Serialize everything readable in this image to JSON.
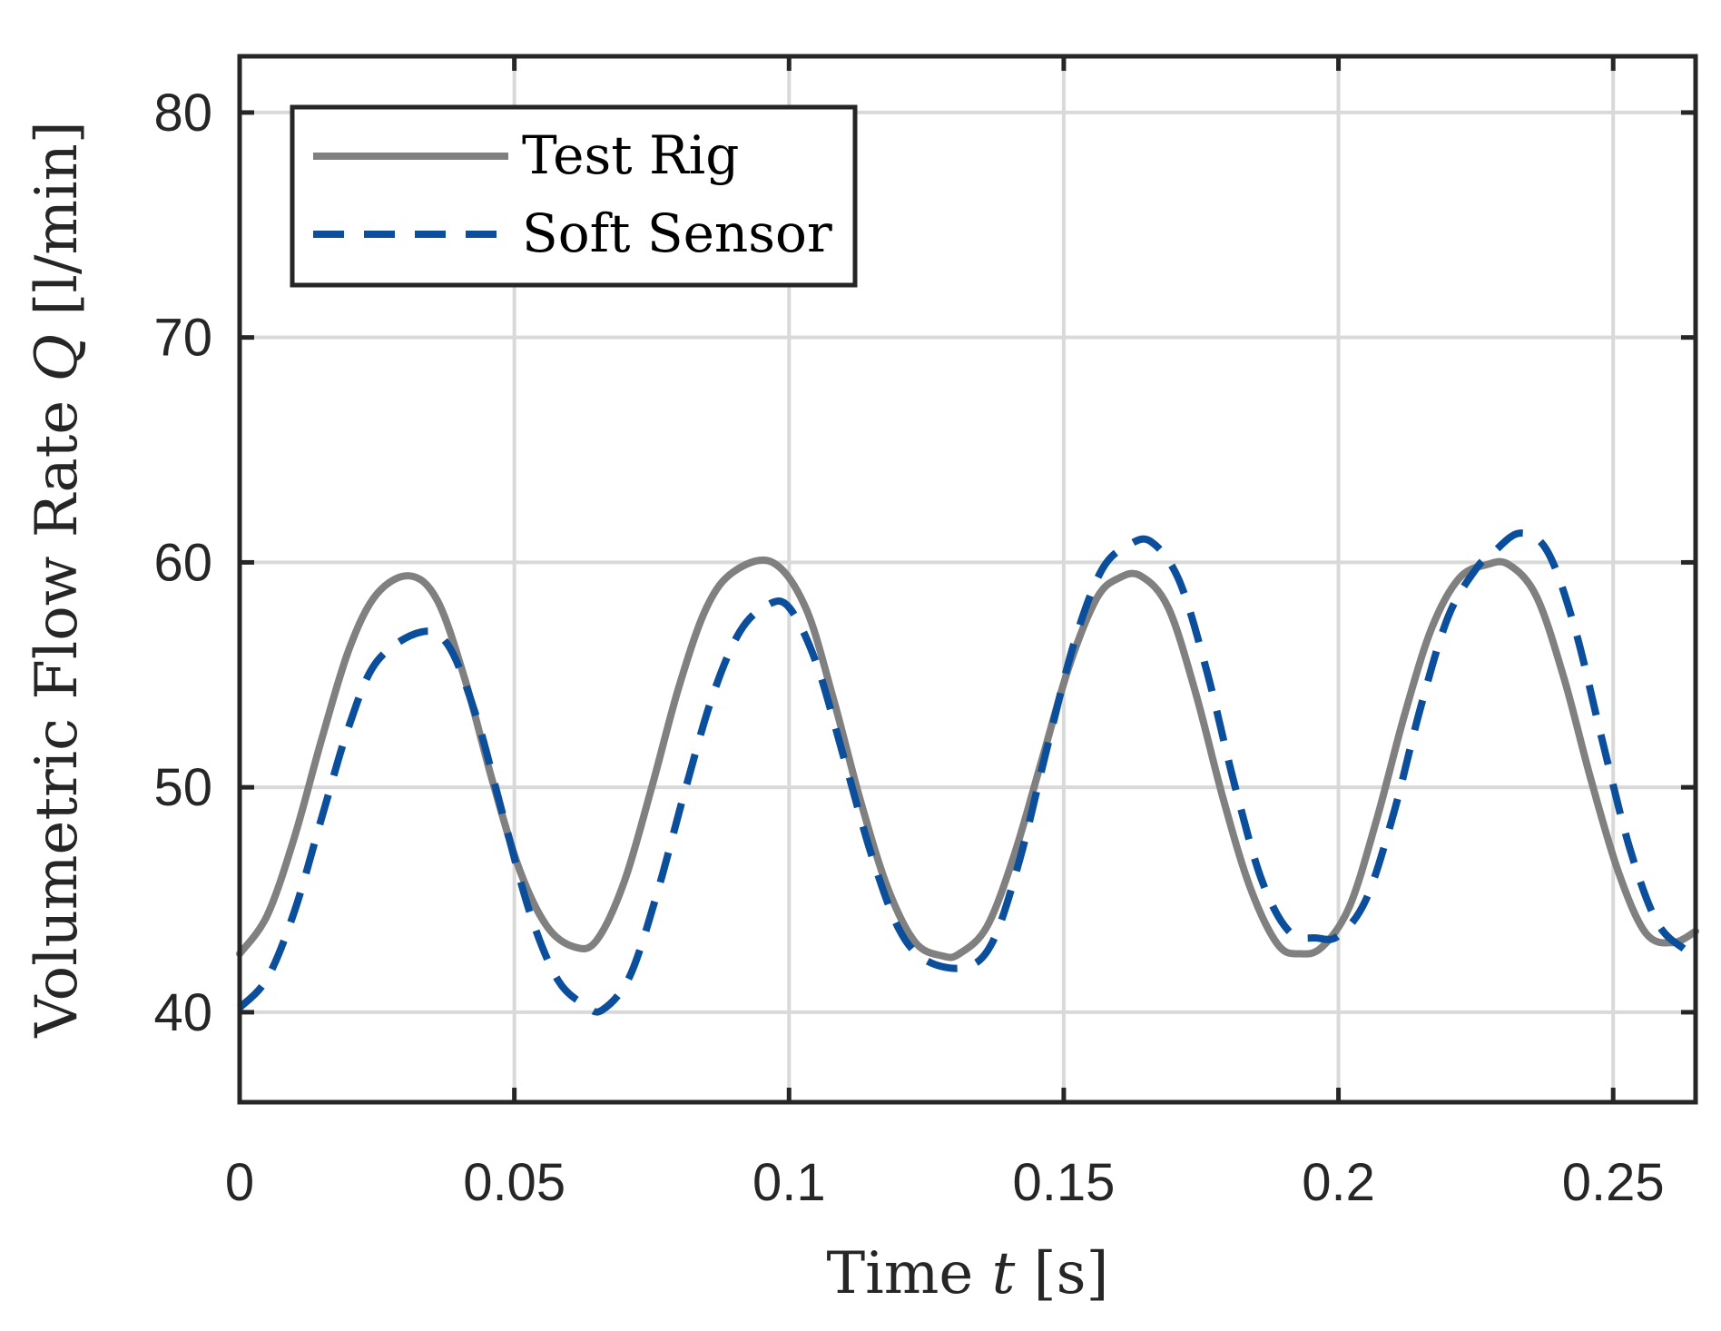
{
  "chart_data": {
    "type": "line",
    "title": "",
    "xlabel": "Time t [s]",
    "xlabel_parts": [
      "Time ",
      "t",
      " [s]"
    ],
    "ylabel": "Volumetric Flow Rate Q [l/min]",
    "ylabel_parts": [
      "Volumetric Flow Rate ",
      "Q",
      " [l/min]"
    ],
    "xlim": [
      0,
      0.265
    ],
    "ylim": [
      36,
      82.5
    ],
    "xticks": [
      0,
      0.05,
      0.1,
      0.15,
      0.2,
      0.25
    ],
    "xtick_labels": [
      "0",
      "0.05",
      "0.1",
      "0.15",
      "0.2",
      "0.25"
    ],
    "yticks": [
      40,
      50,
      60,
      70,
      80
    ],
    "ytick_labels": [
      "40",
      "50",
      "60",
      "70",
      "80"
    ],
    "grid": true,
    "legend_location": "top-left",
    "series": [
      {
        "name": "Test Rig",
        "color": "#808080",
        "style": "solid",
        "x": [
          0,
          0.005,
          0.01,
          0.015,
          0.02,
          0.025,
          0.031,
          0.036,
          0.041,
          0.046,
          0.051,
          0.056,
          0.061,
          0.065,
          0.07,
          0.075,
          0.08,
          0.085,
          0.09,
          0.097,
          0.103,
          0.108,
          0.113,
          0.118,
          0.123,
          0.128,
          0.131,
          0.136,
          0.141,
          0.146,
          0.151,
          0.156,
          0.16,
          0.164,
          0.169,
          0.174,
          0.179,
          0.184,
          0.189,
          0.193,
          0.197,
          0.202,
          0.207,
          0.212,
          0.217,
          0.222,
          0.227,
          0.231,
          0.236,
          0.241,
          0.246,
          0.251,
          0.256,
          0.261,
          0.265
        ],
        "values": [
          42.6,
          44.3,
          47.8,
          52.2,
          56.2,
          58.6,
          59.4,
          58.3,
          54.8,
          50.3,
          46.3,
          43.8,
          42.9,
          43.2,
          45.8,
          50.0,
          54.5,
          58.0,
          59.6,
          60.0,
          58.0,
          54.0,
          49.4,
          45.5,
          43.1,
          42.5,
          42.6,
          43.8,
          47.0,
          51.2,
          55.4,
          58.4,
          59.3,
          59.4,
          58.0,
          54.2,
          49.5,
          45.5,
          43.0,
          42.6,
          42.9,
          44.7,
          48.6,
          53.2,
          57.1,
          59.3,
          59.9,
          59.9,
          58.5,
          54.9,
          50.3,
          46.2,
          43.5,
          43.1,
          43.6
        ]
      },
      {
        "name": "Soft Sensor",
        "color": "#0b4e9b",
        "style": "dashed",
        "x": [
          0,
          0.005,
          0.01,
          0.015,
          0.02,
          0.025,
          0.033,
          0.038,
          0.043,
          0.048,
          0.053,
          0.058,
          0.063,
          0.066,
          0.071,
          0.076,
          0.081,
          0.086,
          0.091,
          0.096,
          0.1,
          0.105,
          0.11,
          0.115,
          0.12,
          0.125,
          0.132,
          0.137,
          0.142,
          0.147,
          0.152,
          0.157,
          0.162,
          0.166,
          0.171,
          0.176,
          0.181,
          0.186,
          0.191,
          0.196,
          0.2,
          0.205,
          0.21,
          0.215,
          0.22,
          0.225,
          0.228,
          0.233,
          0.238,
          0.243,
          0.248,
          0.253,
          0.258,
          0.263,
          0.265
        ],
        "values": [
          40.2,
          41.5,
          44.5,
          48.7,
          52.8,
          55.6,
          56.9,
          56.3,
          53.2,
          48.7,
          44.3,
          41.4,
          40.3,
          40.1,
          41.6,
          45.3,
          49.8,
          54.0,
          56.9,
          58.1,
          58.0,
          55.5,
          51.3,
          47.0,
          43.7,
          42.3,
          42.0,
          43.1,
          46.8,
          51.8,
          56.5,
          59.7,
          60.8,
          60.9,
          59.2,
          55.2,
          50.2,
          45.9,
          43.6,
          43.3,
          43.4,
          45.0,
          48.8,
          53.6,
          57.6,
          59.7,
          60.4,
          61.3,
          60.5,
          57.1,
          52.1,
          47.3,
          44.0,
          42.8,
          42.6
        ]
      }
    ]
  }
}
